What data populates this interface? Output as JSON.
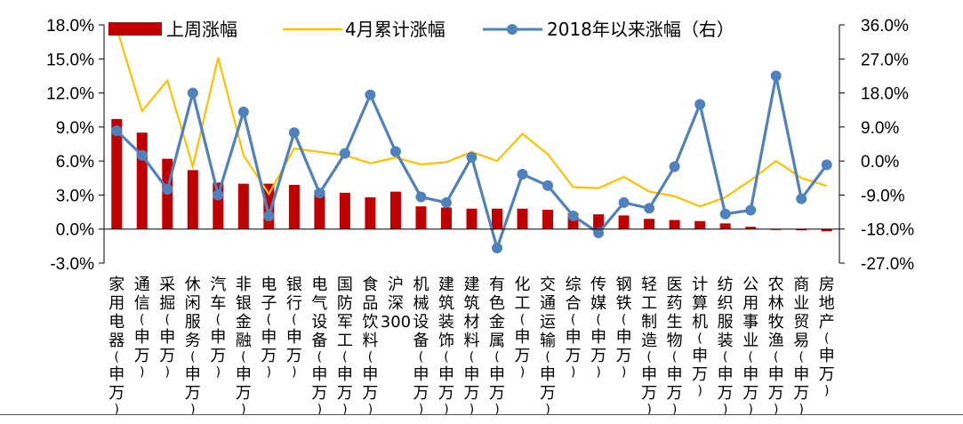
{
  "chart_data": {
    "type": "bar",
    "categories": [
      "家用电器(申万)",
      "通信(申万)",
      "采掘(申万)",
      "休闲服务(申万)",
      "汽车(申万)",
      "非银金融(申万)",
      "电子(申万)",
      "银行(申万)",
      "电气设备(申万)",
      "国防军工(申万)",
      "食品饮料(申万)",
      "沪深300",
      "机械设备(申万)",
      "建筑装饰(申万)",
      "建筑材料(申万)",
      "有色金属(申万)",
      "化工(申万)",
      "交通运输(申万)",
      "综合(申万)",
      "传媒(申万)",
      "钢铁(申万)",
      "轻工制造(申万)",
      "医药生物(申万)",
      "计算机(申万)",
      "纺织服装(申万)",
      "公用事业(申万)",
      "农林牧渔(申万)",
      "商业贸易(申万)",
      "房地产(申万)"
    ],
    "series": [
      {
        "name": "上周涨幅",
        "type": "bar",
        "axis": "left",
        "color": "#c00000",
        "values": [
          9.7,
          8.5,
          6.2,
          5.2,
          4.1,
          4.0,
          4.0,
          3.9,
          3.4,
          3.2,
          2.8,
          3.3,
          2.0,
          1.9,
          1.8,
          1.8,
          1.8,
          1.7,
          1.4,
          1.3,
          1.2,
          0.9,
          0.8,
          0.7,
          0.5,
          0.2,
          0.0,
          -0.1,
          -0.2
        ]
      },
      {
        "name": "4月累计涨幅",
        "type": "line",
        "axis": "left",
        "color": "#ffc000",
        "values": [
          17.7,
          10.4,
          13.1,
          5.5,
          15.1,
          6.5,
          3.1,
          7.1,
          6.8,
          6.5,
          5.8,
          6.3,
          5.7,
          5.9,
          6.8,
          6.0,
          8.4,
          6.6,
          3.7,
          3.6,
          4.6,
          3.3,
          2.9,
          2.0,
          2.8,
          4.3,
          6.0,
          4.5,
          3.8
        ]
      },
      {
        "name": "2018年以来涨幅（右）",
        "type": "line",
        "axis": "right",
        "color": "#4f81bd",
        "values": [
          8.0,
          1.5,
          -7.5,
          18.0,
          -9.0,
          13.0,
          -14.5,
          7.5,
          -8.5,
          2.0,
          17.5,
          2.5,
          -9.5,
          -11.0,
          1.0,
          -23.0,
          -3.5,
          -6.5,
          -14.5,
          -19.0,
          -11.0,
          -12.5,
          -1.5,
          15.0,
          -14.0,
          -13.0,
          22.5,
          -10.0,
          -1.0
        ]
      }
    ],
    "left_axis": {
      "ticks": [
        "-3.0%",
        "0.0%",
        "3.0%",
        "6.0%",
        "9.0%",
        "12.0%",
        "15.0%",
        "18.0%"
      ],
      "min": -3,
      "max": 18
    },
    "right_axis": {
      "ticks": [
        "-27.0%",
        "-18.0%",
        "-9.0%",
        "0.0%",
        "9.0%",
        "18.0%",
        "27.0%",
        "36.0%"
      ],
      "min": -27,
      "max": 36
    },
    "legend_position": "top"
  }
}
